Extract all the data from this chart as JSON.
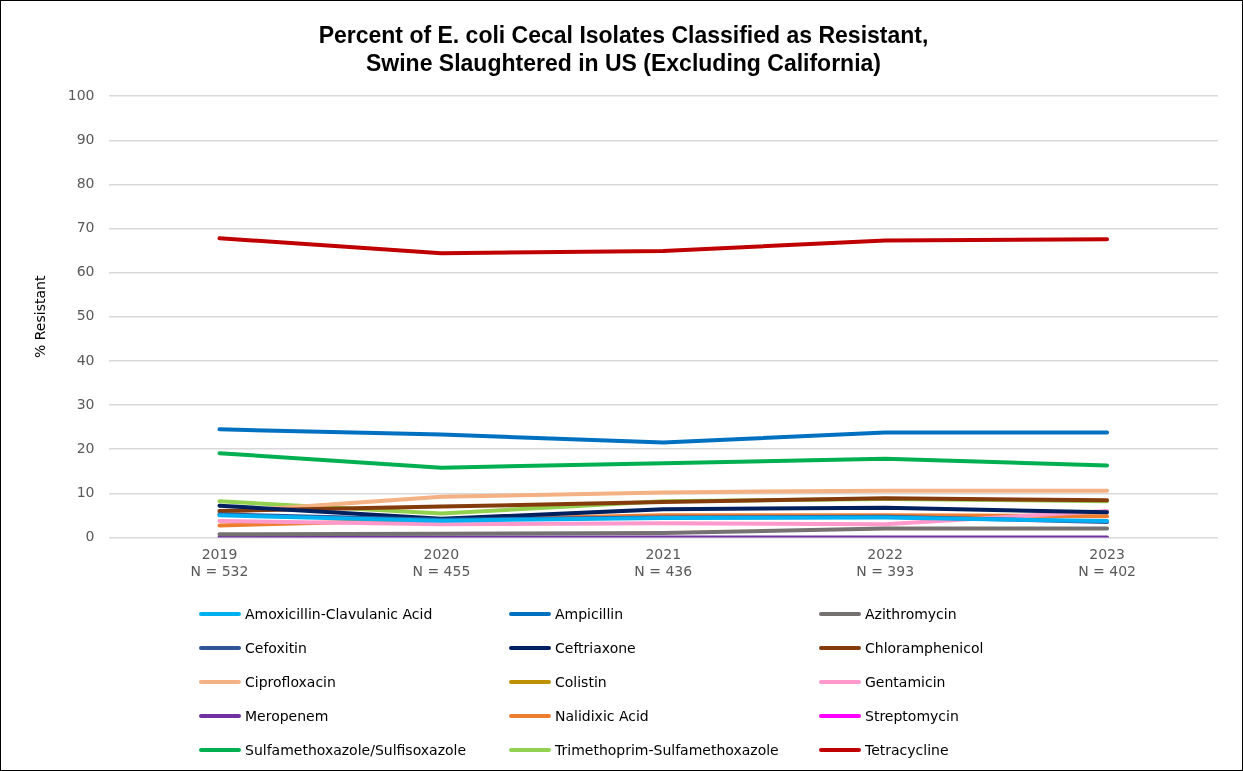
{
  "chart_data": {
    "type": "line",
    "title": "Percent of E. coli Cecal Isolates Classified as Resistant,\nSwine Slaughtered in US (Excluding California)",
    "ylabel": "% Resistant",
    "categories": [
      "2019\nN = 532",
      "2020\nN = 455",
      "2021\nN = 436",
      "2022\nN = 393",
      "2023\nN = 402"
    ],
    "ylim": [
      0,
      100
    ],
    "yticks": [
      0,
      10,
      20,
      30,
      40,
      50,
      60,
      70,
      80,
      90,
      100
    ],
    "grid": "y",
    "legend": "bottom",
    "marker": "none",
    "line_style": "solid",
    "series": [
      {
        "name": "Amoxicillin-Clavulanic Acid",
        "color": "#00b0f0",
        "values": [
          5.0,
          3.8,
          4.4,
          4.5,
          3.7
        ]
      },
      {
        "name": "Ampicillin",
        "color": "#0070c0",
        "values": [
          24.5,
          23.3,
          21.5,
          23.8,
          23.8
        ]
      },
      {
        "name": "Azithromycin",
        "color": "#767171",
        "values": [
          0.7,
          0.8,
          1.0,
          2.0,
          2.0
        ]
      },
      {
        "name": "Cefoxitin",
        "color": "#2f5597",
        "values": [
          5.2,
          4.0,
          4.5,
          4.7,
          3.5
        ]
      },
      {
        "name": "Ceftriaxone",
        "color": "#002060",
        "values": [
          7.2,
          4.2,
          6.4,
          6.7,
          5.7
        ]
      },
      {
        "name": "Chloramphenicol",
        "color": "#843c0c",
        "values": [
          6.0,
          7.0,
          8.0,
          8.9,
          8.4
        ]
      },
      {
        "name": "Ciprofloxacin",
        "color": "#f4b183",
        "values": [
          5.7,
          9.2,
          10.2,
          10.6,
          10.6
        ]
      },
      {
        "name": "Colistin",
        "color": "#bf9000",
        "values": [
          null,
          null,
          null,
          null,
          null
        ]
      },
      {
        "name": "Gentamicin",
        "color": "#ff99cc",
        "values": [
          3.7,
          3.0,
          3.2,
          3.0,
          6.0
        ]
      },
      {
        "name": "Meropenem",
        "color": "#7030a0",
        "values": [
          0,
          0,
          0,
          0,
          0
        ]
      },
      {
        "name": "Nalidixic Acid",
        "color": "#ed7d31",
        "values": [
          2.7,
          4.0,
          5.0,
          5.0,
          4.8
        ]
      },
      {
        "name": "Streptomycin",
        "color": "#ff00ff",
        "values": [
          null,
          null,
          null,
          null,
          null
        ]
      },
      {
        "name": "Sulfamethoxazole/Sulfisoxazole",
        "color": "#00b050",
        "values": [
          19.1,
          15.8,
          16.8,
          17.8,
          16.3
        ]
      },
      {
        "name": "Trimethoprim-Sulfamethoxazole",
        "color": "#92d050",
        "values": [
          8.2,
          5.4,
          8.2,
          8.7,
          8.2
        ]
      },
      {
        "name": "Tetracycline",
        "color": "#c00000",
        "values": [
          67.8,
          64.4,
          64.9,
          67.3,
          67.6
        ]
      }
    ]
  }
}
